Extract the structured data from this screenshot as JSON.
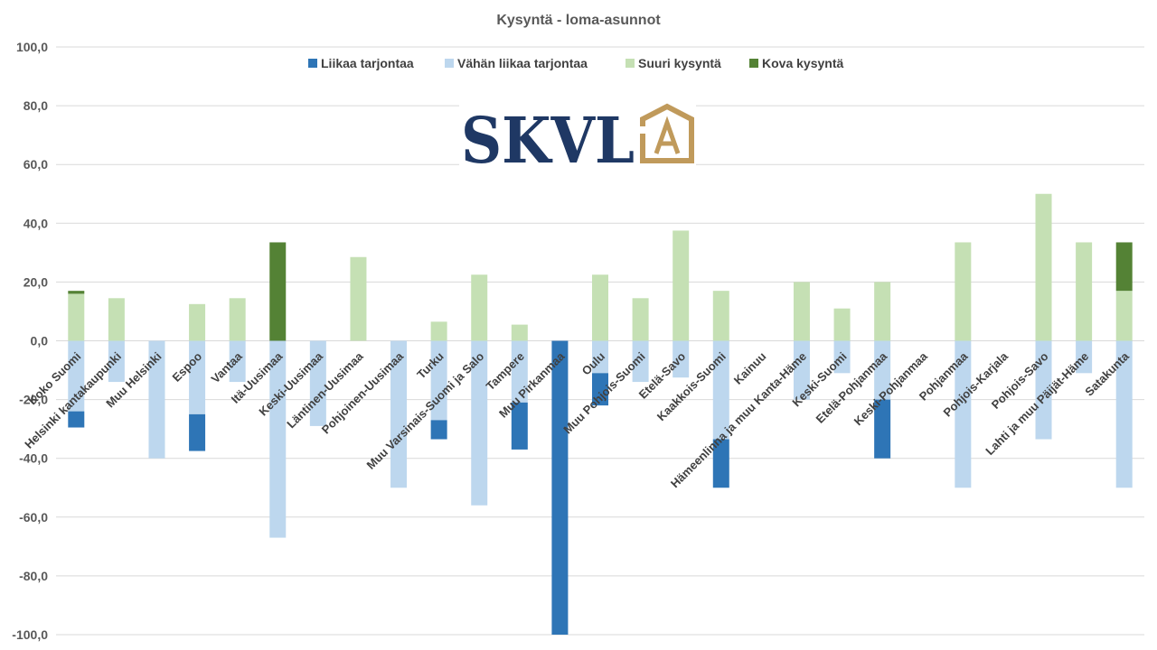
{
  "chart_data": {
    "type": "bar",
    "stacked": true,
    "title": "Kysyntä - loma-asunnot",
    "ylim": [
      -100,
      100
    ],
    "yticks": [
      "100,0",
      "80,0",
      "60,0",
      "40,0",
      "20,0",
      "0,0",
      "-20,0",
      "-40,0",
      "-60,0",
      "-80,0",
      "-100,0"
    ],
    "yticks_values": [
      100,
      80,
      60,
      40,
      20,
      0,
      -20,
      -40,
      -60,
      -80,
      -100
    ],
    "grid": true,
    "legend_position": "top",
    "categories": [
      "Koko Suomi",
      "Helsinki kantakaupunki",
      "Muu Helsinki",
      "Espoo",
      "Vantaa",
      "Itä-Uusimaa",
      "Keski-Uusimaa",
      "Läntinen-Uusimaa",
      "Pohjoinen-Uusimaa",
      "Turku",
      "Muu Varsinais-Suomi ja Salo",
      "Tampere",
      "Muu Pirkanmaa",
      "Oulu",
      "Muu Pohjois-Suomi",
      "Etelä-Savo",
      "Kaakkois-Suomi",
      "Kainuu",
      "Hämeenlinna ja muu Kanta-Häme",
      "Keski-Suomi",
      "Etelä-Pohjanmaa",
      "Keski-Pohjanmaa",
      "Pohjanmaa",
      "Pohjois-Karjala",
      "Pohjois-Savo",
      "Lahti ja muu Päijät-Häme",
      "Satakunta"
    ],
    "series": [
      {
        "name": "Liikaa tarjontaa",
        "color": "#2e75b6",
        "values": [
          -5.5,
          0,
          0,
          -12.5,
          0,
          0,
          0,
          0,
          0,
          -6.5,
          0,
          -16,
          -100,
          -11,
          0,
          0,
          -16.5,
          0,
          0,
          0,
          -20,
          0,
          0,
          0,
          0,
          0,
          0
        ]
      },
      {
        "name": "Vähän liikaa tarjontaa",
        "color": "#bdd7ee",
        "values": [
          -24,
          -14,
          -40,
          -25,
          -14,
          -67,
          -29,
          0,
          -50,
          -27,
          -56,
          -21,
          0,
          -11,
          -14,
          -12.5,
          -33.5,
          0,
          -20,
          -11,
          -20,
          0,
          -50,
          0,
          -33.5,
          -11,
          -50
        ]
      },
      {
        "name": "Suuri kysyntä",
        "color": "#c5e0b4",
        "values": [
          16,
          14.5,
          0,
          12.5,
          14.5,
          0,
          0,
          28.5,
          0,
          6.5,
          22.5,
          5.5,
          0,
          22.5,
          14.5,
          37.5,
          17,
          0,
          20,
          11,
          20,
          0,
          33.5,
          0,
          50,
          33.5,
          17
        ]
      },
      {
        "name": "Kova kysyntä",
        "color": "#548235",
        "values": [
          1,
          0,
          0,
          0,
          0,
          33.5,
          0,
          0,
          0,
          0,
          0,
          0,
          0,
          0,
          0,
          0,
          0,
          0,
          0,
          0,
          0,
          0,
          0,
          0,
          0,
          0,
          16.5
        ]
      }
    ]
  },
  "logo": {
    "text": "SKVL",
    "emblem_letter": "A",
    "text_color": "#1f3864",
    "emblem_color": "#c09a5b"
  }
}
